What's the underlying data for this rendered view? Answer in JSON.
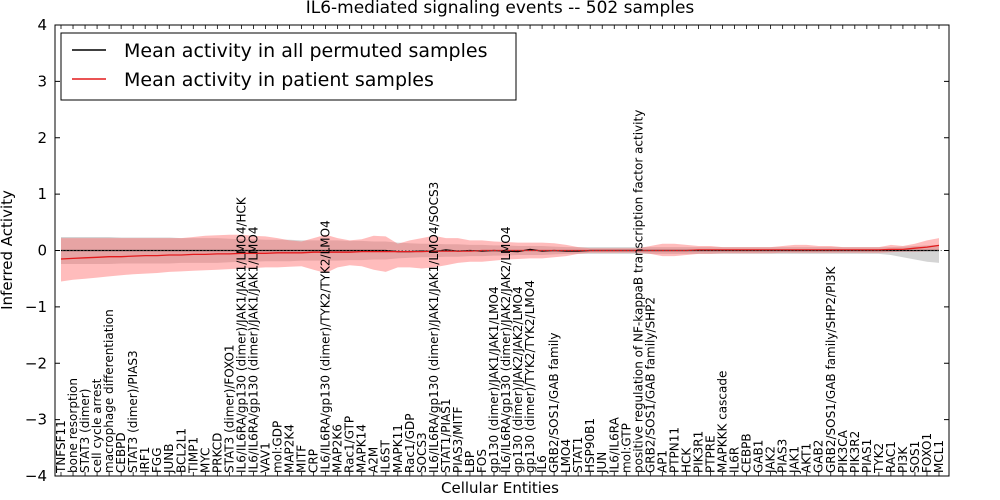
{
  "colors": {
    "permuted_line": "#000000",
    "patient_line": "#e31a1c",
    "patient_band": "#ff6b6b",
    "permuted_band": "#b0b0b0"
  },
  "chart_data": {
    "type": "line",
    "title": "IL6-mediated signaling events -- 502 samples",
    "xlabel": "Cellular Entities",
    "ylabel": "Inferred Activity",
    "ylim": [
      -4,
      4
    ],
    "yticks": [
      -4,
      -3,
      -2,
      -1,
      0,
      1,
      2,
      3,
      4
    ],
    "ytick_labels": [
      "−4",
      "−3",
      "−2",
      "−1",
      "0",
      "1",
      "2",
      "3",
      "4"
    ],
    "grid": false,
    "legend_position": "top-left",
    "categories": [
      "TNFSF11",
      "bone resorption",
      "STAT3 (dimer)",
      "cell cycle arrest",
      "macrophage differentiation",
      "CEBPD",
      "STAT3 (dimer)/PIAS3",
      "IRF1",
      "FGG",
      "JUNB",
      "BCL2L1",
      "TIMP1",
      "MYC",
      "PRKCD",
      "STAT3 (dimer)/FOXO1",
      "IL6/IL6RA/gp130 (dimer)/JAK1/JAK1/LMO4/HCK",
      "IL6/IL6RA/gp130 (dimer)/JAK1/JAK1/LMO4",
      "VAV1",
      "mol:GDP",
      "MAP2K4",
      "MITF",
      "CRP",
      "IL6/IL6RA/gp130 (dimer)/TYK2/TYK2/LMO4",
      "MAP2K6",
      "Rac1/GTP",
      "MAPK14",
      "A2M",
      "IL6ST",
      "MAPK11",
      "Rac1/GDP",
      "SOCS3",
      "IL6/IL6RA/gp130 (dimer)/JAK1/JAK1/LMO4/SOCS3",
      "STAT1/PIAS1",
      "PIAS3/MITF",
      "LBP",
      "FOS",
      "gp130 (dimer)/JAK1/JAK1/LMO4",
      "IL6/IL6RA/gp130 (dimer)/JAK2/JAK2/LMO4",
      "gp130 (dimer)/JAK2/JAK2/LMO4",
      "gp130 (dimer)/TYK2/TYK2/LMO4",
      "IL6",
      "GRB2/SOS1/GAB family",
      "LMO4",
      "STAT1",
      "HSP90B1",
      "JUN",
      "IL6/IL6RA",
      "mol:GTP",
      "positive regulation of NF-kappaB transcription factor activity",
      "GRB2/SOS1/GAB family/SHP2",
      "AP1",
      "PTPN11",
      "HCK",
      "PIK3R1",
      "PTPRE",
      "MAPKKK cascade",
      "IL6R",
      "CEBPB",
      "GAB1",
      "JAK2",
      "PIAS3",
      "JAK1",
      "AKT1",
      "GAB2",
      "GRB2/SOS1/GAB family/SHP2/PI3K",
      "PIK3CA",
      "PIK3R2",
      "PIAS1",
      "TYK2",
      "RAC1",
      "PI3K",
      "SOS1",
      "FOXO1",
      "MCL1"
    ],
    "series": [
      {
        "name": "Mean activity in all permuted samples",
        "values": [
          0.0,
          0.0,
          0.0,
          0.0,
          0.0,
          0.0,
          0.0,
          0.0,
          0.0,
          0.0,
          0.0,
          0.0,
          0.0,
          0.0,
          0.0,
          0.0,
          0.0,
          0.0,
          0.0,
          0.0,
          0.0,
          0.0,
          0.0,
          0.0,
          0.0,
          0.0,
          0.0,
          0.0,
          -0.02,
          -0.02,
          -0.01,
          -0.02,
          0.01,
          -0.01,
          0.0,
          -0.01,
          0.0,
          -0.01,
          -0.02,
          0.02,
          -0.01,
          0.0,
          -0.01,
          -0.01,
          0.0,
          0.0,
          0.0,
          0.0,
          0.0,
          0.0,
          0.0,
          0.0,
          0.0,
          0.0,
          0.0,
          0.0,
          0.0,
          0.0,
          0.0,
          0.0,
          0.0,
          0.0,
          0.0,
          0.0,
          0.0,
          0.0,
          0.0,
          0.0,
          0.0,
          0.0,
          0.0,
          0.0,
          0.0,
          0.0
        ]
      },
      {
        "name": "Mean activity in patient samples",
        "values": [
          -0.15,
          -0.14,
          -0.13,
          -0.12,
          -0.11,
          -0.11,
          -0.1,
          -0.09,
          -0.09,
          -0.08,
          -0.08,
          -0.07,
          -0.07,
          -0.06,
          -0.06,
          -0.05,
          -0.05,
          -0.05,
          -0.04,
          -0.04,
          -0.04,
          -0.03,
          -0.03,
          -0.03,
          -0.03,
          -0.02,
          -0.02,
          -0.02,
          -0.02,
          -0.02,
          -0.02,
          -0.01,
          -0.01,
          -0.01,
          -0.01,
          0.0,
          0.0,
          0.0,
          0.0,
          0.0,
          0.0,
          0.0,
          0.0,
          0.0,
          0.0,
          0.0,
          0.0,
          0.0,
          0.0,
          0.0,
          0.0,
          0.0,
          0.0,
          0.01,
          0.01,
          0.01,
          0.01,
          0.01,
          0.01,
          0.01,
          0.01,
          0.01,
          0.01,
          0.01,
          0.01,
          0.01,
          0.01,
          0.01,
          0.01,
          0.02,
          0.02,
          0.04,
          0.06,
          0.09
        ]
      }
    ],
    "patient_band": {
      "upper": [
        0.22,
        0.22,
        0.22,
        0.22,
        0.22,
        0.22,
        0.22,
        0.22,
        0.22,
        0.22,
        0.22,
        0.24,
        0.26,
        0.27,
        0.28,
        0.28,
        0.26,
        0.25,
        0.22,
        0.18,
        0.16,
        0.22,
        0.28,
        0.22,
        0.18,
        0.2,
        0.26,
        0.25,
        0.12,
        0.18,
        0.22,
        0.26,
        0.22,
        0.22,
        0.18,
        0.18,
        0.16,
        0.15,
        0.14,
        0.14,
        0.14,
        0.13,
        0.1,
        0.06,
        0.04,
        0.04,
        0.04,
        0.04,
        0.04,
        0.08,
        0.12,
        0.12,
        0.1,
        0.08,
        0.08,
        0.06,
        0.06,
        0.06,
        0.06,
        0.06,
        0.08,
        0.1,
        0.1,
        0.08,
        0.08,
        0.06,
        0.06,
        0.06,
        0.06,
        0.1,
        0.08,
        0.12,
        0.18,
        0.22
      ],
      "lower": [
        -0.55,
        -0.52,
        -0.5,
        -0.48,
        -0.46,
        -0.44,
        -0.42,
        -0.41,
        -0.4,
        -0.38,
        -0.37,
        -0.36,
        -0.35,
        -0.34,
        -0.33,
        -0.32,
        -0.31,
        -0.3,
        -0.3,
        -0.29,
        -0.28,
        -0.34,
        -0.4,
        -0.3,
        -0.26,
        -0.28,
        -0.34,
        -0.38,
        -0.3,
        -0.3,
        -0.32,
        -0.3,
        -0.26,
        -0.22,
        -0.2,
        -0.2,
        -0.18,
        -0.16,
        -0.15,
        -0.14,
        -0.14,
        -0.12,
        -0.1,
        -0.06,
        -0.04,
        -0.04,
        -0.04,
        -0.04,
        -0.04,
        -0.06,
        -0.1,
        -0.1,
        -0.08,
        -0.06,
        -0.06,
        -0.05,
        -0.05,
        -0.05,
        -0.05,
        -0.05,
        -0.04,
        -0.04,
        -0.04,
        -0.04,
        -0.04,
        -0.04,
        -0.04,
        -0.04,
        -0.04,
        -0.03,
        -0.02,
        -0.02,
        -0.01,
        0.0
      ]
    },
    "permuted_band": {
      "upper": [
        0.24,
        0.24,
        0.24,
        0.24,
        0.24,
        0.23,
        0.23,
        0.23,
        0.23,
        0.23,
        0.22,
        0.22,
        0.22,
        0.22,
        0.21,
        0.2,
        0.2,
        0.19,
        0.19,
        0.19,
        0.18,
        0.18,
        0.18,
        0.18,
        0.17,
        0.17,
        0.16,
        0.16,
        0.14,
        0.13,
        0.12,
        0.12,
        0.11,
        0.11,
        0.1,
        0.1,
        0.09,
        0.09,
        0.08,
        0.08,
        0.08,
        0.07,
        0.06,
        0.06,
        0.06,
        0.06,
        0.06,
        0.06,
        0.06,
        0.06,
        0.06,
        0.06,
        0.06,
        0.06,
        0.06,
        0.06,
        0.06,
        0.06,
        0.06,
        0.06,
        0.06,
        0.06,
        0.06,
        0.06,
        0.06,
        0.06,
        0.06,
        0.06,
        0.06,
        0.06,
        0.07,
        0.08,
        0.09,
        0.1
      ],
      "lower": [
        -0.24,
        -0.24,
        -0.24,
        -0.24,
        -0.24,
        -0.23,
        -0.23,
        -0.23,
        -0.23,
        -0.23,
        -0.22,
        -0.22,
        -0.22,
        -0.22,
        -0.21,
        -0.2,
        -0.2,
        -0.19,
        -0.19,
        -0.19,
        -0.18,
        -0.18,
        -0.18,
        -0.18,
        -0.17,
        -0.17,
        -0.16,
        -0.16,
        -0.14,
        -0.13,
        -0.12,
        -0.12,
        -0.11,
        -0.11,
        -0.1,
        -0.1,
        -0.09,
        -0.09,
        -0.08,
        -0.08,
        -0.08,
        -0.07,
        -0.06,
        -0.06,
        -0.06,
        -0.06,
        -0.06,
        -0.06,
        -0.06,
        -0.06,
        -0.06,
        -0.06,
        -0.06,
        -0.06,
        -0.06,
        -0.06,
        -0.06,
        -0.06,
        -0.06,
        -0.06,
        -0.06,
        -0.06,
        -0.06,
        -0.06,
        -0.06,
        -0.06,
        -0.06,
        -0.06,
        -0.06,
        -0.08,
        -0.12,
        -0.16,
        -0.2,
        -0.22
      ]
    }
  }
}
